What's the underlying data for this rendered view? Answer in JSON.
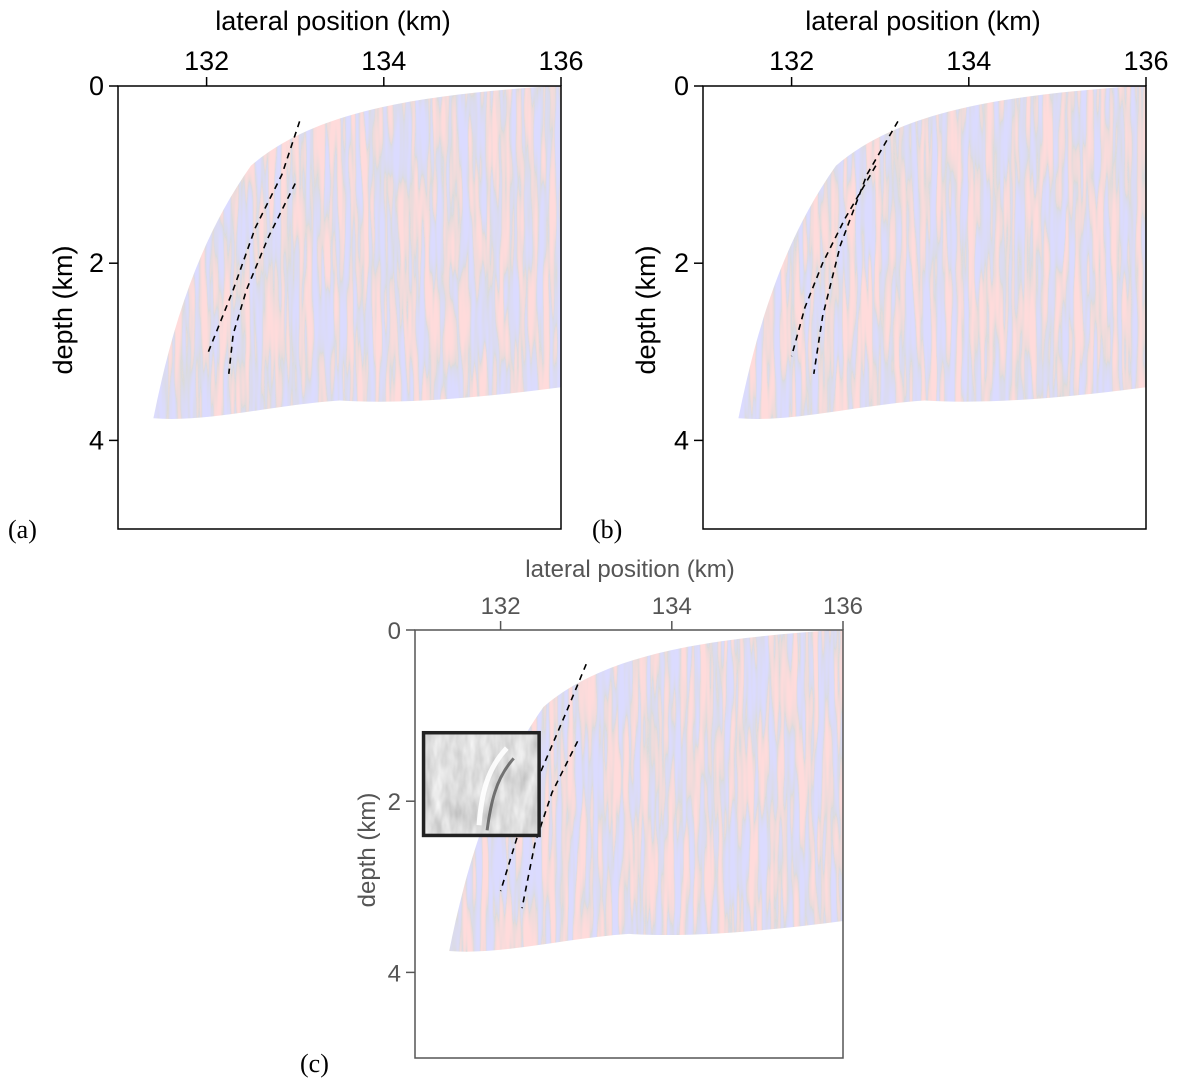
{
  "figure": {
    "panels": [
      {
        "id": "a",
        "label": "(a)",
        "xlabel": "lateral position (km)",
        "ylabel": "depth (km)",
        "xticks": [
          "132",
          "134",
          "136"
        ],
        "yticks": [
          "0",
          "2",
          "4"
        ]
      },
      {
        "id": "b",
        "label": "(b)",
        "xlabel": "lateral position (km)",
        "ylabel": "depth (km)",
        "xticks": [
          "132",
          "134",
          "136"
        ],
        "yticks": [
          "0",
          "2",
          "4"
        ]
      },
      {
        "id": "c",
        "label": "(c)",
        "xlabel": "lateral position (km)",
        "ylabel": "depth (km)",
        "xticks": [
          "132",
          "134",
          "136"
        ],
        "yticks": [
          "0",
          "2",
          "4"
        ],
        "inset": "grayscale zoom of fault zone"
      }
    ]
  },
  "chart_data": [
    {
      "type": "heatmap",
      "panel": "a",
      "xlabel": "lateral position (km)",
      "ylabel": "depth (km)",
      "xlim": [
        131,
        136
      ],
      "ylim": [
        0,
        5
      ],
      "y_inverted": true,
      "x_axis_position": "top",
      "xtick_values": [
        132,
        134,
        136
      ],
      "ytick_values": [
        0,
        2,
        4
      ],
      "colormap": [
        "#3030ff",
        "#ffffff",
        "#ff2020"
      ],
      "fault_lines": [
        [
          [
            133.05,
            0.4
          ],
          [
            132.85,
            1.0
          ],
          [
            132.55,
            1.6
          ],
          [
            132.3,
            2.3
          ],
          [
            132.1,
            2.8
          ],
          [
            132.0,
            3.05
          ]
        ],
        [
          [
            133.0,
            1.1
          ],
          [
            132.7,
            1.7
          ],
          [
            132.45,
            2.3
          ],
          [
            132.3,
            2.8
          ],
          [
            132.25,
            3.25
          ]
        ]
      ]
    },
    {
      "type": "heatmap",
      "panel": "b",
      "xlabel": "lateral position (km)",
      "ylabel": "depth (km)",
      "xlim": [
        131,
        136
      ],
      "ylim": [
        0,
        5
      ],
      "y_inverted": true,
      "x_axis_position": "top",
      "xtick_values": [
        132,
        134,
        136
      ],
      "ytick_values": [
        0,
        2,
        4
      ],
      "colormap": [
        "#3030ff",
        "#ffffff",
        "#ff2020"
      ],
      "fault_lines": [
        [
          [
            132.95,
            0.9
          ],
          [
            132.6,
            1.5
          ],
          [
            132.35,
            2.0
          ],
          [
            132.15,
            2.5
          ],
          [
            132.0,
            3.05
          ]
        ],
        [
          [
            133.2,
            0.4
          ],
          [
            132.85,
            1.0
          ],
          [
            132.55,
            1.8
          ],
          [
            132.35,
            2.6
          ],
          [
            132.25,
            3.25
          ]
        ]
      ]
    },
    {
      "type": "heatmap",
      "panel": "c",
      "xlabel": "lateral position (km)",
      "ylabel": "depth (km)",
      "xlim": [
        131,
        136
      ],
      "ylim": [
        0,
        5
      ],
      "y_inverted": true,
      "x_axis_position": "top",
      "xtick_values": [
        132,
        134,
        136
      ],
      "ytick_values": [
        0,
        2,
        4
      ],
      "colormap": [
        "#3030ff",
        "#ffffff",
        "#ff2020"
      ],
      "inset_extent": {
        "x": [
          131.1,
          132.45
        ],
        "y": [
          1.2,
          2.4
        ]
      },
      "fault_lines": [
        [
          [
            133.0,
            0.4
          ],
          [
            132.75,
            1.0
          ],
          [
            132.45,
            1.7
          ],
          [
            132.2,
            2.4
          ],
          [
            132.0,
            3.05
          ]
        ],
        [
          [
            132.9,
            1.3
          ],
          [
            132.6,
            1.9
          ],
          [
            132.4,
            2.5
          ],
          [
            132.25,
            3.25
          ]
        ]
      ]
    }
  ]
}
